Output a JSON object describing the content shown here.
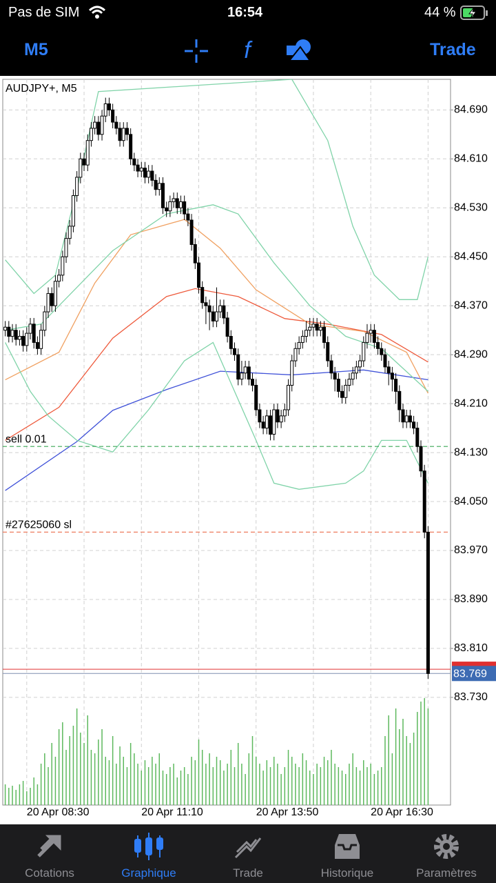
{
  "status_bar": {
    "carrier": "Pas de SIM",
    "time": "16:54",
    "battery": "44 %"
  },
  "toolbar": {
    "timeframe": "M5",
    "trade": "Trade"
  },
  "chart_data": {
    "type": "candlestick",
    "title": "AUDJPY+, M5",
    "open": [
      84.33,
      84.335,
      84.32,
      84.33,
      84.315,
      84.32,
      84.305,
      84.325,
      84.34,
      84.31,
      84.3,
      84.33,
      84.36,
      84.39,
      84.37,
      84.41,
      84.42,
      84.45,
      84.48,
      84.5,
      84.55,
      84.58,
      84.61,
      84.6,
      84.64,
      84.66,
      84.67,
      84.65,
      84.68,
      84.7,
      84.69,
      84.67,
      84.66,
      84.64,
      84.66,
      84.65,
      84.61,
      84.6,
      84.59,
      84.595,
      84.58,
      84.59,
      84.575,
      84.56,
      84.57,
      84.53,
      84.525,
      84.54,
      84.545,
      84.53,
      84.54,
      84.52,
      84.51,
      84.47,
      84.44,
      84.4,
      84.375,
      84.37,
      84.36,
      84.345,
      84.36,
      84.37,
      84.35,
      84.32,
      84.3,
      84.29,
      84.25,
      84.26,
      84.27,
      84.25,
      84.24,
      84.2,
      84.18,
      84.17,
      84.19,
      84.16,
      84.2,
      84.18,
      84.19,
      84.2,
      84.24,
      84.28,
      84.3,
      84.31,
      84.32,
      84.33,
      84.335,
      84.34,
      84.33,
      84.335,
      84.31,
      84.28,
      84.26,
      84.25,
      84.23,
      84.22,
      84.24,
      84.25,
      84.26,
      84.27,
      84.28,
      84.31,
      84.325,
      84.33,
      84.31,
      84.3,
      84.29,
      84.27,
      84.26,
      84.25,
      84.23,
      84.2,
      84.18,
      84.19,
      84.18,
      84.17,
      84.14,
      84.1,
      84.0
    ],
    "high": [
      84.345,
      84.345,
      84.34,
      84.34,
      84.33,
      84.33,
      84.335,
      84.35,
      84.35,
      84.32,
      84.34,
      84.37,
      84.4,
      84.4,
      84.42,
      84.43,
      84.46,
      84.49,
      84.51,
      84.56,
      84.59,
      84.62,
      84.62,
      84.65,
      84.67,
      84.68,
      84.68,
      84.69,
      84.71,
      84.71,
      84.7,
      84.68,
      84.67,
      84.67,
      84.67,
      84.66,
      84.62,
      84.61,
      84.605,
      84.605,
      84.6,
      84.6,
      84.585,
      84.58,
      84.58,
      84.54,
      84.55,
      84.555,
      84.555,
      84.55,
      84.55,
      84.53,
      84.52,
      84.48,
      84.45,
      84.41,
      84.385,
      84.38,
      84.37,
      84.4,
      84.38,
      84.38,
      84.36,
      84.33,
      84.31,
      84.3,
      84.28,
      84.28,
      84.28,
      84.26,
      84.25,
      84.21,
      84.19,
      84.2,
      84.2,
      84.21,
      84.21,
      84.2,
      84.21,
      84.25,
      84.29,
      84.31,
      84.32,
      84.33,
      84.345,
      84.35,
      84.35,
      84.35,
      84.345,
      84.345,
      84.32,
      84.29,
      84.27,
      84.26,
      84.24,
      84.25,
      84.26,
      84.27,
      84.28,
      84.29,
      84.32,
      84.34,
      84.34,
      84.34,
      84.32,
      84.31,
      84.3,
      84.28,
      84.27,
      84.26,
      84.24,
      84.21,
      84.2,
      84.2,
      84.19,
      84.18,
      84.15,
      84.11,
      84.01
    ],
    "low": [
      84.32,
      84.31,
      84.31,
      84.305,
      84.305,
      84.295,
      84.295,
      84.315,
      84.3,
      84.29,
      84.29,
      84.32,
      84.35,
      84.36,
      84.36,
      84.4,
      84.41,
      84.44,
      84.47,
      84.49,
      84.54,
      84.57,
      84.59,
      84.59,
      84.63,
      84.65,
      84.64,
      84.64,
      84.67,
      84.68,
      84.66,
      84.65,
      84.63,
      84.63,
      84.64,
      84.6,
      84.59,
      84.58,
      84.58,
      84.57,
      84.57,
      84.565,
      84.55,
      84.55,
      84.52,
      84.515,
      84.515,
      84.53,
      84.52,
      84.52,
      84.51,
      84.5,
      84.46,
      84.43,
      84.39,
      84.365,
      84.34,
      84.33,
      84.335,
      84.335,
      84.35,
      84.34,
      84.31,
      84.29,
      84.28,
      84.24,
      84.24,
      84.25,
      84.24,
      84.23,
      84.19,
      84.17,
      84.16,
      84.16,
      84.15,
      84.15,
      84.17,
      84.17,
      84.18,
      84.19,
      84.23,
      84.27,
      84.29,
      84.3,
      84.31,
      84.32,
      84.32,
      84.32,
      84.32,
      84.3,
      84.27,
      84.25,
      84.23,
      84.22,
      84.21,
      84.21,
      84.23,
      84.24,
      84.25,
      84.26,
      84.27,
      84.3,
      84.31,
      84.3,
      84.29,
      84.28,
      84.26,
      84.24,
      84.23,
      84.21,
      84.18,
      84.17,
      84.17,
      84.17,
      84.16,
      84.13,
      84.09,
      83.99,
      83.76
    ],
    "close": [
      84.335,
      84.32,
      84.33,
      84.315,
      84.32,
      84.305,
      84.325,
      84.34,
      84.31,
      84.3,
      84.33,
      84.36,
      84.39,
      84.37,
      84.41,
      84.42,
      84.45,
      84.48,
      84.5,
      84.55,
      84.58,
      84.61,
      84.6,
      84.64,
      84.66,
      84.67,
      84.65,
      84.68,
      84.7,
      84.69,
      84.67,
      84.66,
      84.64,
      84.66,
      84.65,
      84.61,
      84.6,
      84.59,
      84.595,
      84.58,
      84.59,
      84.575,
      84.56,
      84.57,
      84.53,
      84.525,
      84.54,
      84.545,
      84.53,
      84.54,
      84.52,
      84.51,
      84.47,
      84.44,
      84.4,
      84.375,
      84.37,
      84.36,
      84.345,
      84.36,
      84.37,
      84.35,
      84.32,
      84.3,
      84.29,
      84.25,
      84.26,
      84.27,
      84.25,
      84.24,
      84.2,
      84.18,
      84.17,
      84.19,
      84.16,
      84.2,
      84.18,
      84.19,
      84.2,
      84.24,
      84.28,
      84.3,
      84.31,
      84.32,
      84.33,
      84.335,
      84.34,
      84.33,
      84.335,
      84.31,
      84.28,
      84.26,
      84.25,
      84.23,
      84.22,
      84.24,
      84.25,
      84.26,
      84.27,
      84.28,
      84.31,
      84.325,
      84.33,
      84.31,
      84.3,
      84.29,
      84.27,
      84.26,
      84.25,
      84.23,
      84.2,
      84.18,
      84.19,
      84.18,
      84.17,
      84.14,
      84.1,
      84.0,
      83.769
    ],
    "volume": [
      30,
      25,
      28,
      22,
      30,
      35,
      20,
      25,
      40,
      30,
      60,
      75,
      55,
      90,
      70,
      110,
      120,
      80,
      100,
      115,
      140,
      105,
      90,
      130,
      80,
      75,
      95,
      110,
      70,
      65,
      100,
      60,
      85,
      70,
      55,
      90,
      75,
      60,
      50,
      65,
      55,
      70,
      60,
      75,
      50,
      45,
      55,
      60,
      40,
      50,
      55,
      45,
      70,
      65,
      95,
      80,
      60,
      75,
      55,
      70,
      65,
      50,
      60,
      80,
      55,
      90,
      60,
      45,
      75,
      100,
      70,
      60,
      50,
      65,
      55,
      70,
      60,
      45,
      55,
      80,
      70,
      60,
      55,
      75,
      65,
      50,
      45,
      60,
      55,
      70,
      65,
      80,
      60,
      55,
      50,
      45,
      60,
      75,
      55,
      50,
      65,
      55,
      60,
      45,
      50,
      55,
      100,
      130,
      75,
      140,
      110,
      125,
      100,
      90,
      105,
      135,
      150,
      155,
      140
    ],
    "volume_color": "#5cb85c",
    "volume_lim": [
      0,
      160
    ],
    "indicators": [
      {
        "color": "#3f51d8",
        "x": [
          0,
          20,
          30,
          45,
          60,
          80,
          100,
          118
        ],
        "values": [
          84.068,
          84.148,
          84.199,
          84.233,
          84.263,
          84.257,
          84.265,
          84.249
        ]
      },
      {
        "color": "#ee5a3c",
        "x": [
          0,
          15,
          30,
          45,
          53,
          65,
          78,
          90,
          105,
          118
        ],
        "values": [
          84.15,
          84.204,
          84.317,
          84.385,
          84.398,
          84.385,
          84.349,
          84.34,
          84.323,
          84.278
        ]
      },
      {
        "color": "#f0a060",
        "x": [
          0,
          15,
          25,
          35,
          50,
          60,
          70,
          85,
          100,
          112,
          118
        ],
        "values": [
          84.249,
          84.294,
          84.407,
          84.486,
          84.511,
          84.464,
          84.396,
          84.34,
          84.328,
          84.294,
          84.227
        ]
      },
      {
        "color": "#7fd3a8",
        "x": [
          0,
          8,
          14,
          20,
          26,
          80,
          90,
          97,
          103,
          110,
          115,
          118
        ],
        "values": [
          84.445,
          84.39,
          84.42,
          84.56,
          84.72,
          84.74,
          84.64,
          84.5,
          84.42,
          84.38,
          84.38,
          84.45
        ]
      },
      {
        "color": "#7fd3a8",
        "x": [
          0,
          7,
          12,
          20,
          30,
          40,
          50,
          58,
          70,
          75,
          82,
          95,
          100,
          105,
          112,
          118
        ],
        "values": [
          84.31,
          84.23,
          84.19,
          84.15,
          84.131,
          84.2,
          84.28,
          84.31,
          84.15,
          84.08,
          84.07,
          84.08,
          84.1,
          84.15,
          84.15,
          84.08
        ]
      },
      {
        "color": "#7fd3a8",
        "x": [
          0,
          10,
          20,
          30,
          45,
          58,
          65,
          75,
          85,
          95,
          105,
          118
        ],
        "values": [
          84.33,
          84.34,
          84.4,
          84.46,
          84.52,
          84.535,
          84.52,
          84.44,
          84.37,
          84.32,
          84.3,
          84.23
        ]
      }
    ],
    "levels": [
      {
        "label": "sell 0.01",
        "value": 84.14,
        "color": "#3aa655"
      },
      {
        "label": "#27625060 sl",
        "value": 84.0,
        "color": "#ee7a5c"
      }
    ],
    "bid": 83.769,
    "bid_color": "#3d6bb3",
    "ask": 83.776,
    "ask_color": "#e03030",
    "xlim": [
      -0.5,
      118.5
    ],
    "xticks": [
      {
        "value": 6,
        "label": "20 Apr 08:30"
      },
      {
        "value": 22,
        "label": null
      },
      {
        "value": 38,
        "label": "20 Apr 11:10"
      },
      {
        "value": 54,
        "label": null
      },
      {
        "value": 70,
        "label": "20 Apr 13:50"
      },
      {
        "value": 86,
        "label": null
      },
      {
        "value": 102,
        "label": "20 Apr 16:30"
      },
      {
        "value": 118,
        "label": null
      }
    ],
    "ylim": [
      83.554,
      84.74
    ],
    "yticks": [
      {
        "value": 84.69,
        "label": "84.690"
      },
      {
        "value": 84.61,
        "label": "84.610"
      },
      {
        "value": 84.53,
        "label": "84.530"
      },
      {
        "value": 84.45,
        "label": "84.450"
      },
      {
        "value": 84.37,
        "label": "84.370"
      },
      {
        "value": 84.29,
        "label": "84.290"
      },
      {
        "value": 84.21,
        "label": "84.210"
      },
      {
        "value": 84.13,
        "label": "84.130"
      },
      {
        "value": 84.05,
        "label": "84.050"
      },
      {
        "value": 83.97,
        "label": "83.970"
      },
      {
        "value": 83.89,
        "label": "83.890"
      },
      {
        "value": 83.81,
        "label": "83.810"
      },
      {
        "value": 83.73,
        "label": "83.730"
      }
    ],
    "grid": true
  },
  "tab_bar": {
    "tabs": [
      "Cotations",
      "Graphique",
      "Trade",
      "Historique",
      "Paramètres"
    ],
    "active": 1
  }
}
